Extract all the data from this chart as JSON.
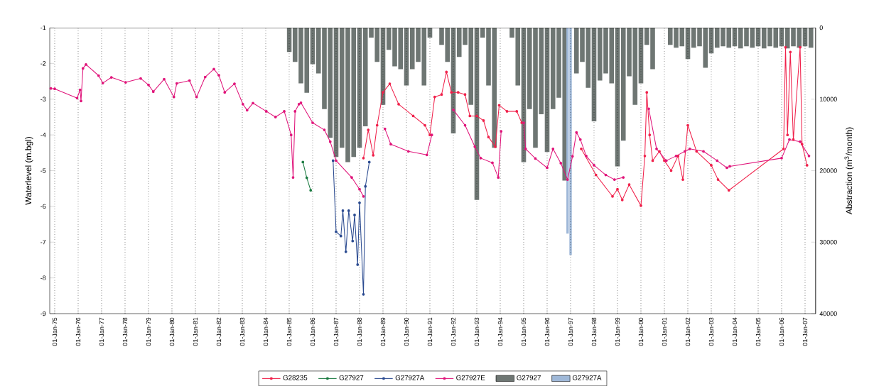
{
  "chart_data": {
    "type": "line",
    "ylabel": "Waterlevel (m.bgl)",
    "y2label": "Abstraction (m$^{3}$/month)",
    "xlim": [
      "1974-10-15",
      "2007-06-15"
    ],
    "xticks": [
      {
        "value": "1975-01-01",
        "label": "01-Jan-75"
      },
      {
        "value": "1976-01-01",
        "label": "01-Jan-76"
      },
      {
        "value": "1977-01-01",
        "label": "01-Jan-77"
      },
      {
        "value": "1978-01-01",
        "label": "01-Jan-78"
      },
      {
        "value": "1979-01-01",
        "label": "01-Jan-79"
      },
      {
        "value": "1980-01-01",
        "label": "01-Jan-80"
      },
      {
        "value": "1981-01-01",
        "label": "01-Jan-81"
      },
      {
        "value": "1982-01-01",
        "label": "01-Jan-82"
      },
      {
        "value": "1983-01-01",
        "label": "01-Jan-83"
      },
      {
        "value": "1984-01-01",
        "label": "01-Jan-84"
      },
      {
        "value": "1985-01-01",
        "label": "01-Jan-85"
      },
      {
        "value": "1986-01-01",
        "label": "01-Jan-86"
      },
      {
        "value": "1987-01-01",
        "label": "01-Jan-87"
      },
      {
        "value": "1988-01-01",
        "label": "01-Jan-88"
      },
      {
        "value": "1989-01-01",
        "label": "01-Jan-89"
      },
      {
        "value": "1990-01-01",
        "label": "01-Jan-90"
      },
      {
        "value": "1991-01-01",
        "label": "01-Jan-91"
      },
      {
        "value": "1992-01-01",
        "label": "01-Jan-92"
      },
      {
        "value": "1993-01-01",
        "label": "01-Jan-93"
      },
      {
        "value": "1994-01-01",
        "label": "01-Jan-94"
      },
      {
        "value": "1995-01-01",
        "label": "01-Jan-95"
      },
      {
        "value": "1996-01-01",
        "label": "01-Jan-96"
      },
      {
        "value": "1997-01-01",
        "label": "01-Jan-97"
      },
      {
        "value": "1998-01-01",
        "label": "01-Jan-98"
      },
      {
        "value": "1999-01-01",
        "label": "01-Jan-99"
      },
      {
        "value": "2000-01-01",
        "label": "01-Jan-00"
      },
      {
        "value": "2001-01-01",
        "label": "01-Jan-01"
      },
      {
        "value": "2002-01-01",
        "label": "01-Jan-02"
      },
      {
        "value": "2003-01-01",
        "label": "01-Jan-03"
      },
      {
        "value": "2004-01-01",
        "label": "01-Jan-04"
      },
      {
        "value": "2005-01-01",
        "label": "01-Jan-05"
      },
      {
        "value": "2006-01-01",
        "label": "01-Jan-06"
      },
      {
        "value": "2007-01-01",
        "label": "01-Jan-07"
      }
    ],
    "ylim": [
      -9,
      -1
    ],
    "yticks": [
      -1,
      -2,
      -3,
      -4,
      -5,
      -6,
      -7,
      -8,
      -9
    ],
    "y2lim": [
      40000,
      0
    ],
    "y2ticks": [
      0,
      10000,
      20000,
      30000,
      40000
    ],
    "grid": "x",
    "legend": "bottom",
    "marker": "circle",
    "line_style": "solid",
    "series": [
      {
        "name": "G28235",
        "color": "#f0204a",
        "x": [
          "1988-03-01",
          "1988-05-15",
          "1988-08-01",
          "1988-10-01",
          "1989-01-01",
          "1989-04-15",
          "1989-09-01",
          "1990-04-15",
          "1990-10-15",
          "1991-01-01",
          "1991-03-15",
          "1991-07-01",
          "1991-09-15",
          "1991-12-01",
          "1992-03-15",
          "1992-07-01",
          "1992-09-15",
          "1993-01-01",
          "1993-04-15",
          "1993-07-01",
          "1993-10-15",
          "1993-12-15",
          "1994-04-15",
          "1994-09-15",
          "1994-12-01",
          "1995-06-01",
          "1997-06-15",
          "1998-02-01",
          "1998-10-15",
          "1999-01-01",
          "1999-03-15",
          "1999-07-01",
          "2000-01-01",
          "2000-03-01",
          "2000-04-01",
          "2000-05-15",
          "2000-07-01",
          "2000-10-15",
          "2001-01-01",
          "2001-04-15",
          "2001-08-01",
          "2001-10-15",
          "2002-01-01",
          "2002-05-15",
          "2003-01-01",
          "2003-04-15",
          "2003-10-01",
          "2006-02-01",
          "2006-03-01",
          "2006-04-01",
          "2006-05-15",
          "2006-07-01",
          "2006-10-15",
          "2006-11-15",
          "2007-02-01"
        ],
        "values": [
          -4.65,
          -3.86,
          -4.57,
          -3.73,
          -2.81,
          -2.57,
          -3.14,
          -3.47,
          -3.73,
          -4.0,
          -2.94,
          -2.87,
          -2.24,
          -2.81,
          -2.81,
          -2.87,
          -3.47,
          -3.47,
          -3.6,
          -4.06,
          -4.33,
          -3.17,
          -3.34,
          -3.34,
          -3.66,
          null,
          -4.39,
          -5.12,
          -5.72,
          -5.52,
          -5.82,
          -5.39,
          -5.98,
          -4.59,
          -2.81,
          -4.0,
          -4.72,
          -4.46,
          -4.72,
          -5.0,
          -4.59,
          -5.25,
          -3.73,
          -4.46,
          -4.85,
          -5.25,
          -5.55,
          -4.39,
          -1.55,
          -4.0,
          -1.68,
          -4.13,
          -1.55,
          -4.26,
          -4.85
        ]
      },
      {
        "name": "G27927",
        "color": "#1a7a40",
        "x": [
          "1985-08-01",
          "1985-10-01",
          "1985-12-01"
        ],
        "values": [
          -4.76,
          -5.2,
          -5.55
        ]
      },
      {
        "name": "G27927A",
        "color": "#2a4a90",
        "x": [
          "1986-11-15",
          "1987-01-01",
          "1987-03-15",
          "1987-04-15",
          "1987-06-01",
          "1987-07-15",
          "1987-09-15",
          "1987-10-15",
          "1987-12-01",
          "1988-01-01",
          "1988-03-01",
          "1988-04-01",
          "1988-06-01"
        ],
        "values": [
          -4.72,
          -6.71,
          -6.83,
          -6.12,
          -7.27,
          -6.12,
          -6.97,
          -6.24,
          -7.63,
          -5.9,
          -8.46,
          -5.44,
          -4.76
        ]
      },
      {
        "name": "G27927E",
        "color": "#e0147a",
        "x": [
          "1974-11-01",
          "1975-01-01",
          "1975-12-15",
          "1976-02-01",
          "1976-02-15",
          "1976-03-15",
          "1976-05-01",
          "1976-11-15",
          "1977-01-20",
          "1977-06-01",
          "1978-01-10",
          "1978-09-01",
          "1979-01-01",
          "1979-03-15",
          "1979-09-01",
          "1980-02-01",
          "1980-03-15",
          "1980-10-01",
          "1981-01-20",
          "1981-06-01",
          "1981-10-15",
          "1982-01-01",
          "1982-04-01",
          "1982-09-01",
          "1983-01-10",
          "1983-03-15",
          "1983-06-15",
          "1984-01-10",
          "1984-06-01",
          "1984-10-15",
          "1985-02-01",
          "1985-03-01",
          "1985-04-01",
          "1985-06-01",
          "1985-07-01",
          "1986-01-01",
          "1986-07-01",
          "1986-10-01",
          "1987-01-01",
          "1987-09-01",
          "1988-01-01",
          "1988-03-01",
          "1988-06-01",
          "1989-02-01",
          "1989-05-01",
          "1990-02-01",
          "1990-11-15",
          "1991-02-01",
          "1991-06-01",
          "1992-01-01",
          "1992-07-01",
          "1992-12-01",
          "1993-03-01",
          "1993-09-01",
          "1993-12-01",
          "1994-01-15",
          "1994-06-01",
          "1995-01-01",
          "1995-02-01",
          "1995-07-01",
          "1996-01-01",
          "1996-04-01",
          "1996-08-01",
          "1996-11-15",
          "1997-02-01",
          "1997-04-01",
          "1997-06-01",
          "1997-09-01",
          "1998-01-01",
          "1998-07-01",
          "1998-11-15",
          "1999-04-01",
          "1999-09-01",
          "2000-05-01",
          "2000-09-01",
          "2001-02-01",
          "2001-07-01",
          "2001-11-15",
          "2002-02-01",
          "2002-09-01",
          "2003-04-01",
          "2003-09-01",
          "2003-10-15",
          "2006-01-01",
          "2006-05-01",
          "2006-10-15",
          "2007-03-01"
        ],
        "values": [
          -2.7,
          -2.71,
          -2.97,
          -2.74,
          -3.05,
          -2.14,
          -2.03,
          -2.34,
          -2.55,
          -2.39,
          -2.53,
          -2.42,
          -2.6,
          -2.79,
          -2.44,
          -2.94,
          -2.56,
          -2.48,
          -2.94,
          -2.38,
          -2.16,
          -2.33,
          -2.81,
          -2.57,
          -3.14,
          -3.31,
          -3.11,
          -3.34,
          -3.5,
          -3.34,
          -4.0,
          -5.19,
          -3.34,
          -3.14,
          -3.1,
          -3.66,
          -3.86,
          -4.19,
          -4.72,
          -5.19,
          -5.52,
          -5.72,
          null,
          -3.83,
          -4.26,
          -4.46,
          -4.56,
          -4.0,
          null,
          -3.3,
          -3.73,
          -4.33,
          -4.65,
          -4.78,
          -5.19,
          -3.9,
          null,
          -3.66,
          -4.39,
          -4.66,
          -4.92,
          -4.39,
          -4.79,
          -5.25,
          -4.6,
          -3.93,
          -4.13,
          -4.59,
          -4.85,
          -5.12,
          -5.25,
          -5.19,
          null,
          -3.27,
          -4.39,
          -4.72,
          -4.59,
          -4.46,
          -4.39,
          -4.46,
          -4.72,
          -4.92,
          -4.88,
          -4.65,
          -4.13,
          -4.19,
          -4.59
        ]
      },
      {
        "name": "G27927",
        "type": "bar",
        "axis": "y2",
        "color": "#6e7673",
        "x": [
          "1985-01-01",
          "1985-04-01",
          "1985-07-01",
          "1985-10-01",
          "1986-01-01",
          "1986-04-01",
          "1986-07-01",
          "1986-10-01",
          "1987-01-01",
          "1987-04-01",
          "1987-07-01",
          "1987-10-01",
          "1988-01-01",
          "1988-04-01",
          "1988-07-01",
          "1988-10-01",
          "1989-01-01",
          "1989-04-01",
          "1989-07-01",
          "1989-10-01",
          "1990-01-01",
          "1990-04-01",
          "1990-07-01",
          "1990-10-01",
          "1991-01-01",
          "1991-04-01",
          "1991-07-01",
          "1991-10-01",
          "1992-01-01",
          "1992-04-01",
          "1992-07-01",
          "1992-10-01",
          "1993-01-01",
          "1993-04-01",
          "1993-07-01",
          "1993-10-01",
          "1994-01-01",
          "1994-04-01",
          "1994-07-01",
          "1994-10-01",
          "1995-01-01",
          "1995-04-01",
          "1995-07-01",
          "1995-10-01",
          "1996-01-01",
          "1996-04-01",
          "1996-07-01",
          "1996-10-01",
          "1997-01-01",
          "1997-04-01",
          "1997-07-01",
          "1997-10-01",
          "1998-01-01",
          "1998-04-01",
          "1998-07-01",
          "1998-10-01",
          "1999-01-01",
          "1999-04-01",
          "1999-07-01",
          "1999-10-01",
          "2000-01-01",
          "2000-04-01",
          "2000-07-01",
          "2000-10-01",
          "2001-01-01",
          "2001-04-01",
          "2001-07-01",
          "2001-10-01",
          "2002-01-01",
          "2002-04-01",
          "2002-07-01",
          "2002-10-01",
          "2003-01-01",
          "2003-04-01",
          "2003-07-01",
          "2003-10-01",
          "2004-01-01",
          "2004-04-01",
          "2004-07-01",
          "2004-10-01",
          "2005-01-01",
          "2005-04-01",
          "2005-07-01",
          "2005-10-01",
          "2006-01-01",
          "2006-04-01",
          "2006-07-01",
          "2006-10-01",
          "2007-01-01",
          "2007-04-01"
        ],
        "values": [
          3400,
          4800,
          7800,
          9100,
          5100,
          6400,
          11400,
          15400,
          18100,
          16800,
          18800,
          18100,
          16800,
          13800,
          1400,
          4800,
          10800,
          3100,
          5400,
          5800,
          8100,
          5800,
          4800,
          8100,
          1400,
          0,
          2400,
          4800,
          14800,
          4100,
          2400,
          10800,
          24100,
          1400,
          8100,
          16800,
          0,
          0,
          1400,
          8100,
          18800,
          11400,
          16800,
          12100,
          17400,
          11400,
          9800,
          21400,
          null,
          6400,
          4800,
          8400,
          13100,
          7400,
          6400,
          7800,
          19400,
          15800,
          6800,
          10800,
          7800,
          2400,
          5800,
          0,
          0,
          2400,
          2800,
          2600,
          4400,
          2800,
          2600,
          5600,
          3600,
          2800,
          2600,
          2800,
          2600,
          2900,
          2600,
          2800,
          2600,
          2900,
          2600,
          2800,
          2600,
          2900,
          2600,
          2800,
          2600,
          2800
        ]
      },
      {
        "name": "G27927A",
        "type": "bar",
        "axis": "y2",
        "color": "#9fb8d8",
        "x": [
          "1996-11-15",
          "1997-01-01"
        ],
        "values": [
          28800,
          31800
        ]
      }
    ]
  }
}
